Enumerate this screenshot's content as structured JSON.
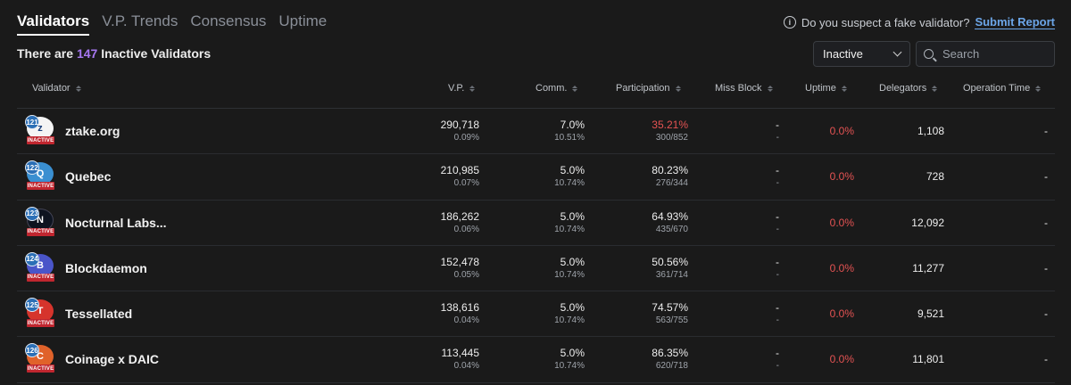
{
  "tabs": [
    {
      "label": "Validators",
      "active": true
    },
    {
      "label": "V.P. Trends",
      "active": false
    },
    {
      "label": "Consensus",
      "active": false
    },
    {
      "label": "Uptime",
      "active": false
    }
  ],
  "report": {
    "question": "Do you suspect a fake validator?",
    "link_label": "Submit Report"
  },
  "summary": {
    "prefix": "There are",
    "count": "147",
    "suffix": "Inactive Validators"
  },
  "filter": {
    "selected": "Inactive",
    "search_placeholder": "Search"
  },
  "columns": {
    "validator": "Validator",
    "vp": "V.P.",
    "comm": "Comm.",
    "participation": "Participation",
    "miss_block": "Miss Block",
    "uptime": "Uptime",
    "delegators": "Delegators",
    "operation_time": "Operation Time"
  },
  "badge_text": "INACTIVE",
  "colors": {
    "accent_purple": "#a678f0",
    "link_blue": "#6ca6e8",
    "danger_red": "#e55353",
    "badge_red": "#c0262f",
    "background": "#1a1a1a"
  },
  "validators": [
    {
      "rank": "121",
      "name": "ztake.org",
      "avatar_icon": "ztake-logo-icon",
      "avatar_color": "#f4f4f4",
      "vp": "290,718",
      "vp_pct": "0.09%",
      "comm": "7.0%",
      "comm_sub": "10.51%",
      "participation": "35.21%",
      "participation_sub": "300/852",
      "participation_low": true,
      "miss_block": "-",
      "miss_block_sub": "-",
      "uptime": "0.0%",
      "delegators": "1,108",
      "operation_time": "-"
    },
    {
      "rank": "122",
      "name": "Quebec",
      "avatar_icon": "quebec-logo-icon",
      "avatar_color": "#3a8fd1",
      "vp": "210,985",
      "vp_pct": "0.07%",
      "comm": "5.0%",
      "comm_sub": "10.74%",
      "participation": "80.23%",
      "participation_sub": "276/344",
      "participation_low": false,
      "miss_block": "-",
      "miss_block_sub": "-",
      "uptime": "0.0%",
      "delegators": "728",
      "operation_time": "-"
    },
    {
      "rank": "123",
      "name": "Nocturnal Labs...",
      "avatar_icon": "nocturnal-labs-logo-icon",
      "avatar_color": "#0e1420",
      "vp": "186,262",
      "vp_pct": "0.06%",
      "comm": "5.0%",
      "comm_sub": "10.74%",
      "participation": "64.93%",
      "participation_sub": "435/670",
      "participation_low": false,
      "miss_block": "-",
      "miss_block_sub": "-",
      "uptime": "0.0%",
      "delegators": "12,092",
      "operation_time": "-"
    },
    {
      "rank": "124",
      "name": "Blockdaemon",
      "avatar_icon": "blockdaemon-logo-icon",
      "avatar_color": "#4a55c9",
      "vp": "152,478",
      "vp_pct": "0.05%",
      "comm": "5.0%",
      "comm_sub": "10.74%",
      "participation": "50.56%",
      "participation_sub": "361/714",
      "participation_low": false,
      "miss_block": "-",
      "miss_block_sub": "-",
      "uptime": "0.0%",
      "delegators": "11,277",
      "operation_time": "-"
    },
    {
      "rank": "125",
      "name": "Tessellated",
      "avatar_icon": "tessellated-logo-icon",
      "avatar_color": "#d6342c",
      "vp": "138,616",
      "vp_pct": "0.04%",
      "comm": "5.0%",
      "comm_sub": "10.74%",
      "participation": "74.57%",
      "participation_sub": "563/755",
      "participation_low": false,
      "miss_block": "-",
      "miss_block_sub": "-",
      "uptime": "0.0%",
      "delegators": "9,521",
      "operation_time": "-"
    },
    {
      "rank": "126",
      "name": "Coinage x DAIC",
      "avatar_icon": "coinage-daic-logo-icon",
      "avatar_color": "#e0622a",
      "vp": "113,445",
      "vp_pct": "0.04%",
      "comm": "5.0%",
      "comm_sub": "10.74%",
      "participation": "86.35%",
      "participation_sub": "620/718",
      "participation_low": false,
      "miss_block": "-",
      "miss_block_sub": "-",
      "uptime": "0.0%",
      "delegators": "11,801",
      "operation_time": "-"
    }
  ]
}
